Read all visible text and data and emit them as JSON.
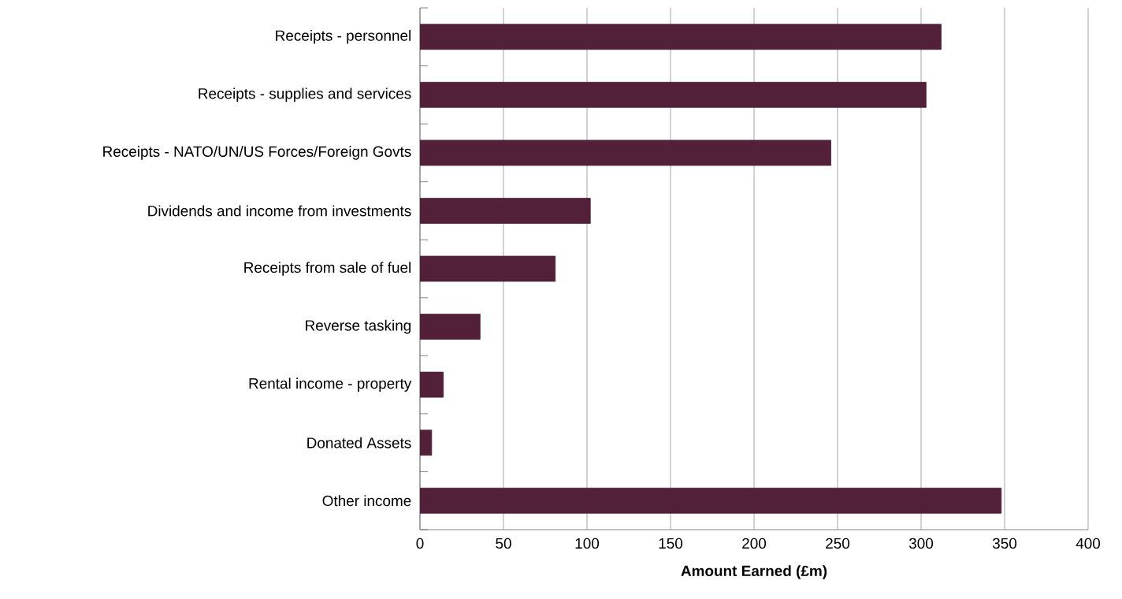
{
  "chart_data": {
    "type": "bar",
    "orientation": "horizontal",
    "xlabel": "Amount Earned (£m)",
    "categories": [
      "Receipts - personnel",
      "Receipts - supplies and services",
      "Receipts - NATO/UN/US Forces/Foreign Govts",
      "Dividends and income from investments",
      "Receipts from sale of fuel",
      "Reverse tasking",
      "Rental income - property",
      "Donated Assets",
      "Other income"
    ],
    "values": [
      312,
      303,
      246,
      102,
      81,
      36,
      14,
      7,
      348
    ],
    "color": "#522039",
    "xlim": [
      0,
      400
    ],
    "xticks": [
      0,
      50,
      100,
      150,
      200,
      250,
      300,
      350,
      400
    ],
    "grid": "x"
  }
}
